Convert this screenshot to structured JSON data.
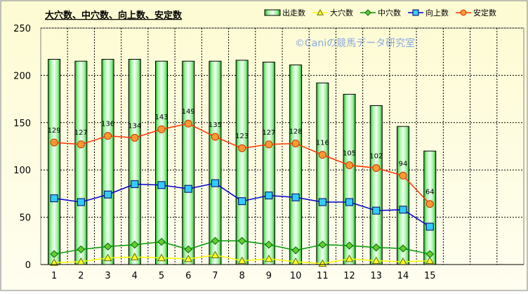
{
  "chart_data": {
    "type": "bar",
    "title": "大穴数、中穴数、向上数、安定数",
    "watermark": "©Caniの競馬データ研究室",
    "categories": [
      "1",
      "2",
      "3",
      "4",
      "5",
      "6",
      "7",
      "8",
      "9",
      "10",
      "11",
      "12",
      "13",
      "14",
      "15"
    ],
    "y_ticks": [
      "0",
      "50",
      "100",
      "150",
      "200",
      "250"
    ],
    "ylim": [
      0,
      250
    ],
    "grid": true,
    "legend_position": "top-right",
    "series": [
      {
        "name": "出走数",
        "type": "bar",
        "color": "#33cc33",
        "values": [
          217,
          215,
          217,
          217,
          215,
          215,
          215,
          216,
          214,
          211,
          192,
          180,
          168,
          146,
          120
        ]
      },
      {
        "name": "大穴数",
        "type": "line",
        "marker": "triangle",
        "color": "#ffff00",
        "values": [
          2,
          3,
          7,
          8,
          7,
          6,
          10,
          4,
          6,
          3,
          1,
          6,
          4,
          3,
          4
        ]
      },
      {
        "name": "中穴数",
        "type": "line",
        "marker": "diamond",
        "color": "#009900",
        "values": [
          11,
          16,
          19,
          21,
          24,
          16,
          25,
          25,
          21,
          15,
          21,
          20,
          18,
          17,
          11
        ]
      },
      {
        "name": "向上数",
        "type": "line",
        "marker": "square",
        "color": "#0000cc",
        "values": [
          70,
          66,
          74,
          85,
          84,
          80,
          86,
          67,
          73,
          71,
          66,
          66,
          57,
          58,
          40
        ]
      },
      {
        "name": "安定数",
        "type": "line",
        "marker": "circle",
        "color": "#ff3300",
        "values": [
          129,
          127,
          136,
          134,
          143,
          149,
          135,
          123,
          127,
          128,
          116,
          105,
          102,
          94,
          64
        ],
        "data_labels": [
          "129",
          "127",
          "136",
          "134",
          "143",
          "149",
          "135",
          "123",
          "127",
          "128",
          "116",
          "105",
          "102",
          "94",
          "64"
        ]
      }
    ]
  }
}
